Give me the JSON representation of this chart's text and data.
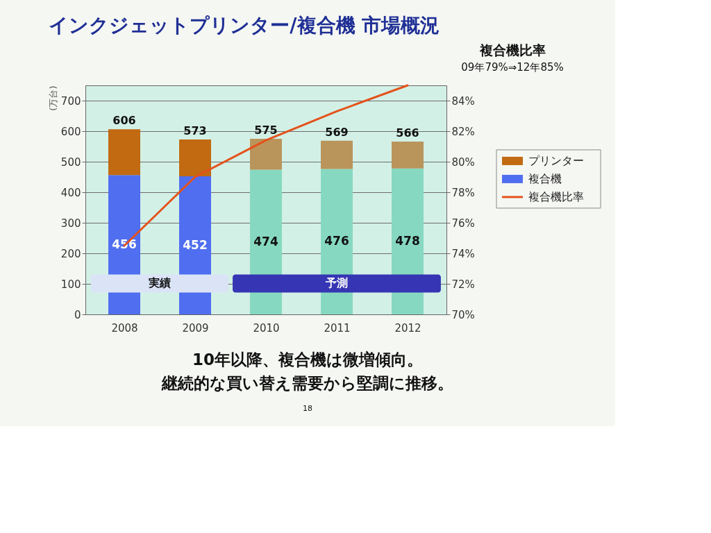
{
  "chart_data": {
    "type": "bar",
    "title": "インクジェットプリンター/複合機 市場概況",
    "ylabel": "(万台)",
    "categories": [
      "2008",
      "2009",
      "2010",
      "2011",
      "2012"
    ],
    "stacked": true,
    "series": [
      {
        "name": "複合機",
        "color": "#4f6ef0",
        "colors": [
          "#4f6ef0",
          "#4f6ef0",
          "#86d9c0",
          "#86d9c0",
          "#86d9c0"
        ],
        "values": [
          456,
          452,
          474,
          476,
          478
        ],
        "value_labels": [
          "456",
          "452",
          "474",
          "476",
          "478"
        ]
      },
      {
        "name": "プリンター",
        "color": "#c16a12",
        "colors": [
          "#c16a12",
          "#c16a12",
          "#b9955c",
          "#b9955c",
          "#b9955c"
        ],
        "values": [
          150,
          121,
          101,
          93,
          88
        ]
      },
      {
        "name": "複合機比率",
        "type": "line",
        "axis": "y2",
        "color": "#e4521b",
        "values": [
          74.5,
          79,
          81.4,
          83.3,
          85
        ]
      }
    ],
    "totals": [
      "606",
      "573",
      "575",
      "569",
      "566"
    ],
    "ylim": [
      0,
      750
    ],
    "yticks": [
      0,
      100,
      200,
      300,
      400,
      500,
      600,
      700
    ],
    "y2lim": [
      70,
      85
    ],
    "y2ticks": [
      {
        "value": 70,
        "label": "70%"
      },
      {
        "value": 72,
        "label": "72%"
      },
      {
        "value": 74,
        "label": "74%"
      },
      {
        "value": 76,
        "label": "76%"
      },
      {
        "value": 78,
        "label": "78%"
      },
      {
        "value": 80,
        "label": "80%"
      },
      {
        "value": 82,
        "label": "82%"
      },
      {
        "value": 84,
        "label": "84%"
      }
    ],
    "grid": "y",
    "legend": "right",
    "bands": [
      {
        "axis": "x",
        "from": "2008",
        "to": "2009",
        "label": "実績",
        "color": "#dbe3f7"
      },
      {
        "axis": "x",
        "from": "2010",
        "to": "2012",
        "label": "予測",
        "color": "#3636b4"
      }
    ],
    "annotations": [
      "複合機比率",
      "09年79%⇒12年85%",
      "10年以降、複合機は微増傾向。",
      "継続的な買い替え需要から堅調に推移。",
      "18"
    ]
  }
}
